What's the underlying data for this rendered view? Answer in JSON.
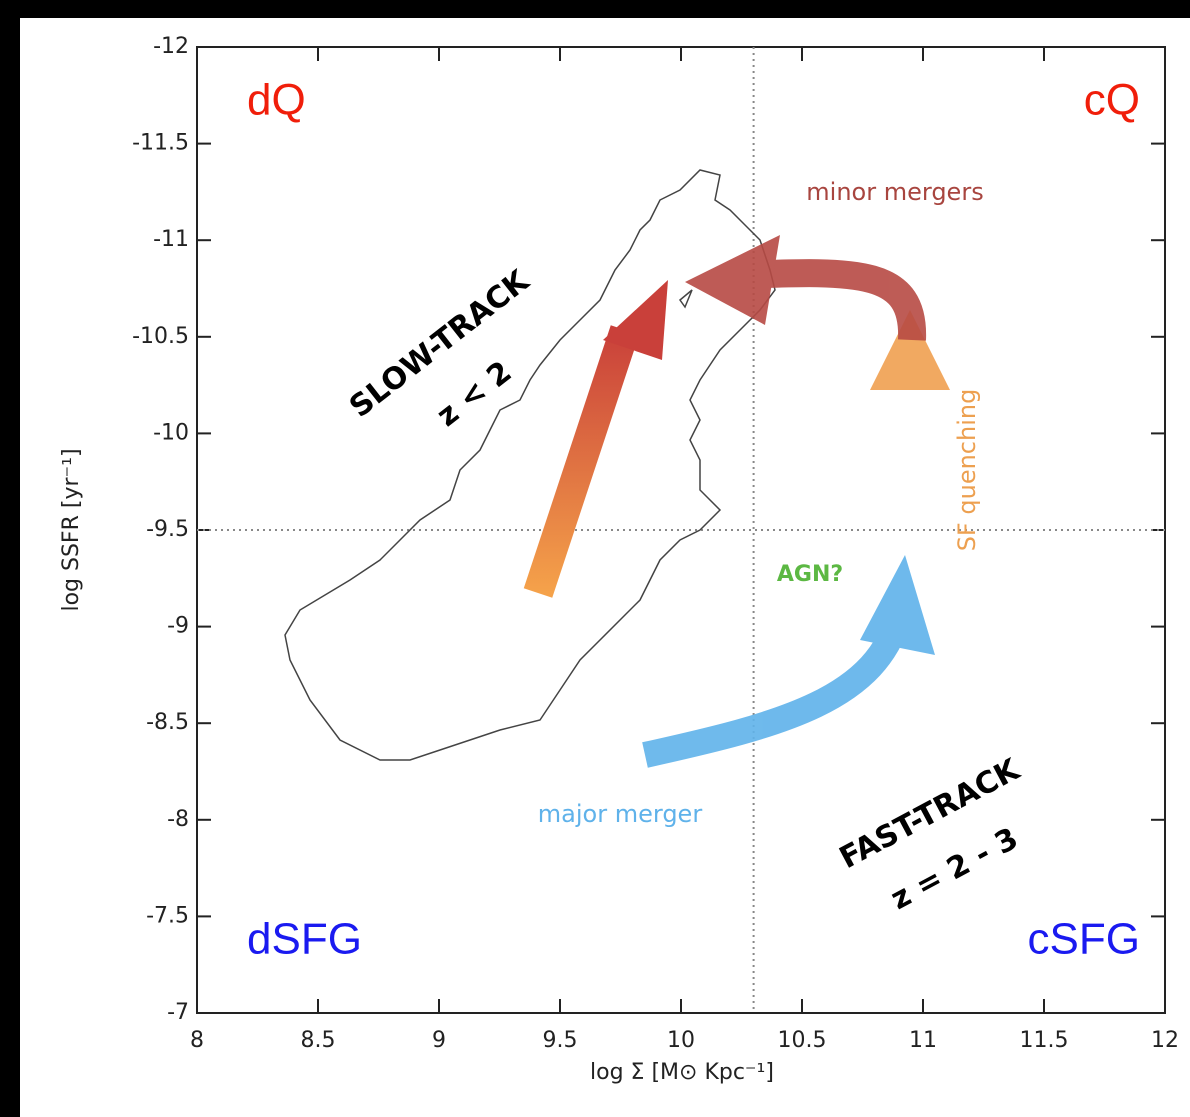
{
  "chart_data": {
    "type": "schematic",
    "x_label": "log Σ [M⊙ Kpc⁻¹]",
    "y_label": "log SSFR [yr⁻¹]",
    "xlim": [
      8,
      12
    ],
    "xticks": [
      8,
      8.5,
      9,
      9.5,
      10,
      10.5,
      11,
      11.5,
      12
    ],
    "ylim": [
      -7,
      -12
    ],
    "yticks": [
      -12,
      -11.5,
      -11,
      -10.5,
      -10,
      -9.5,
      -9,
      -8.5,
      -8,
      -7.5,
      -7
    ],
    "reference_x": 10.3,
    "reference_y": -9.5,
    "annotations": {
      "quadrants": [
        "dQ",
        "cQ",
        "dSFG",
        "cSFG"
      ],
      "slow_track": "SLOW-TRACK",
      "slow_z": "z < 2",
      "fast_track": "FAST-TRACK",
      "fast_z": "z = 2 - 3",
      "minor": "minor mergers",
      "quenching": "SF quenching",
      "agn": "AGN?",
      "major": "major merger"
    }
  }
}
